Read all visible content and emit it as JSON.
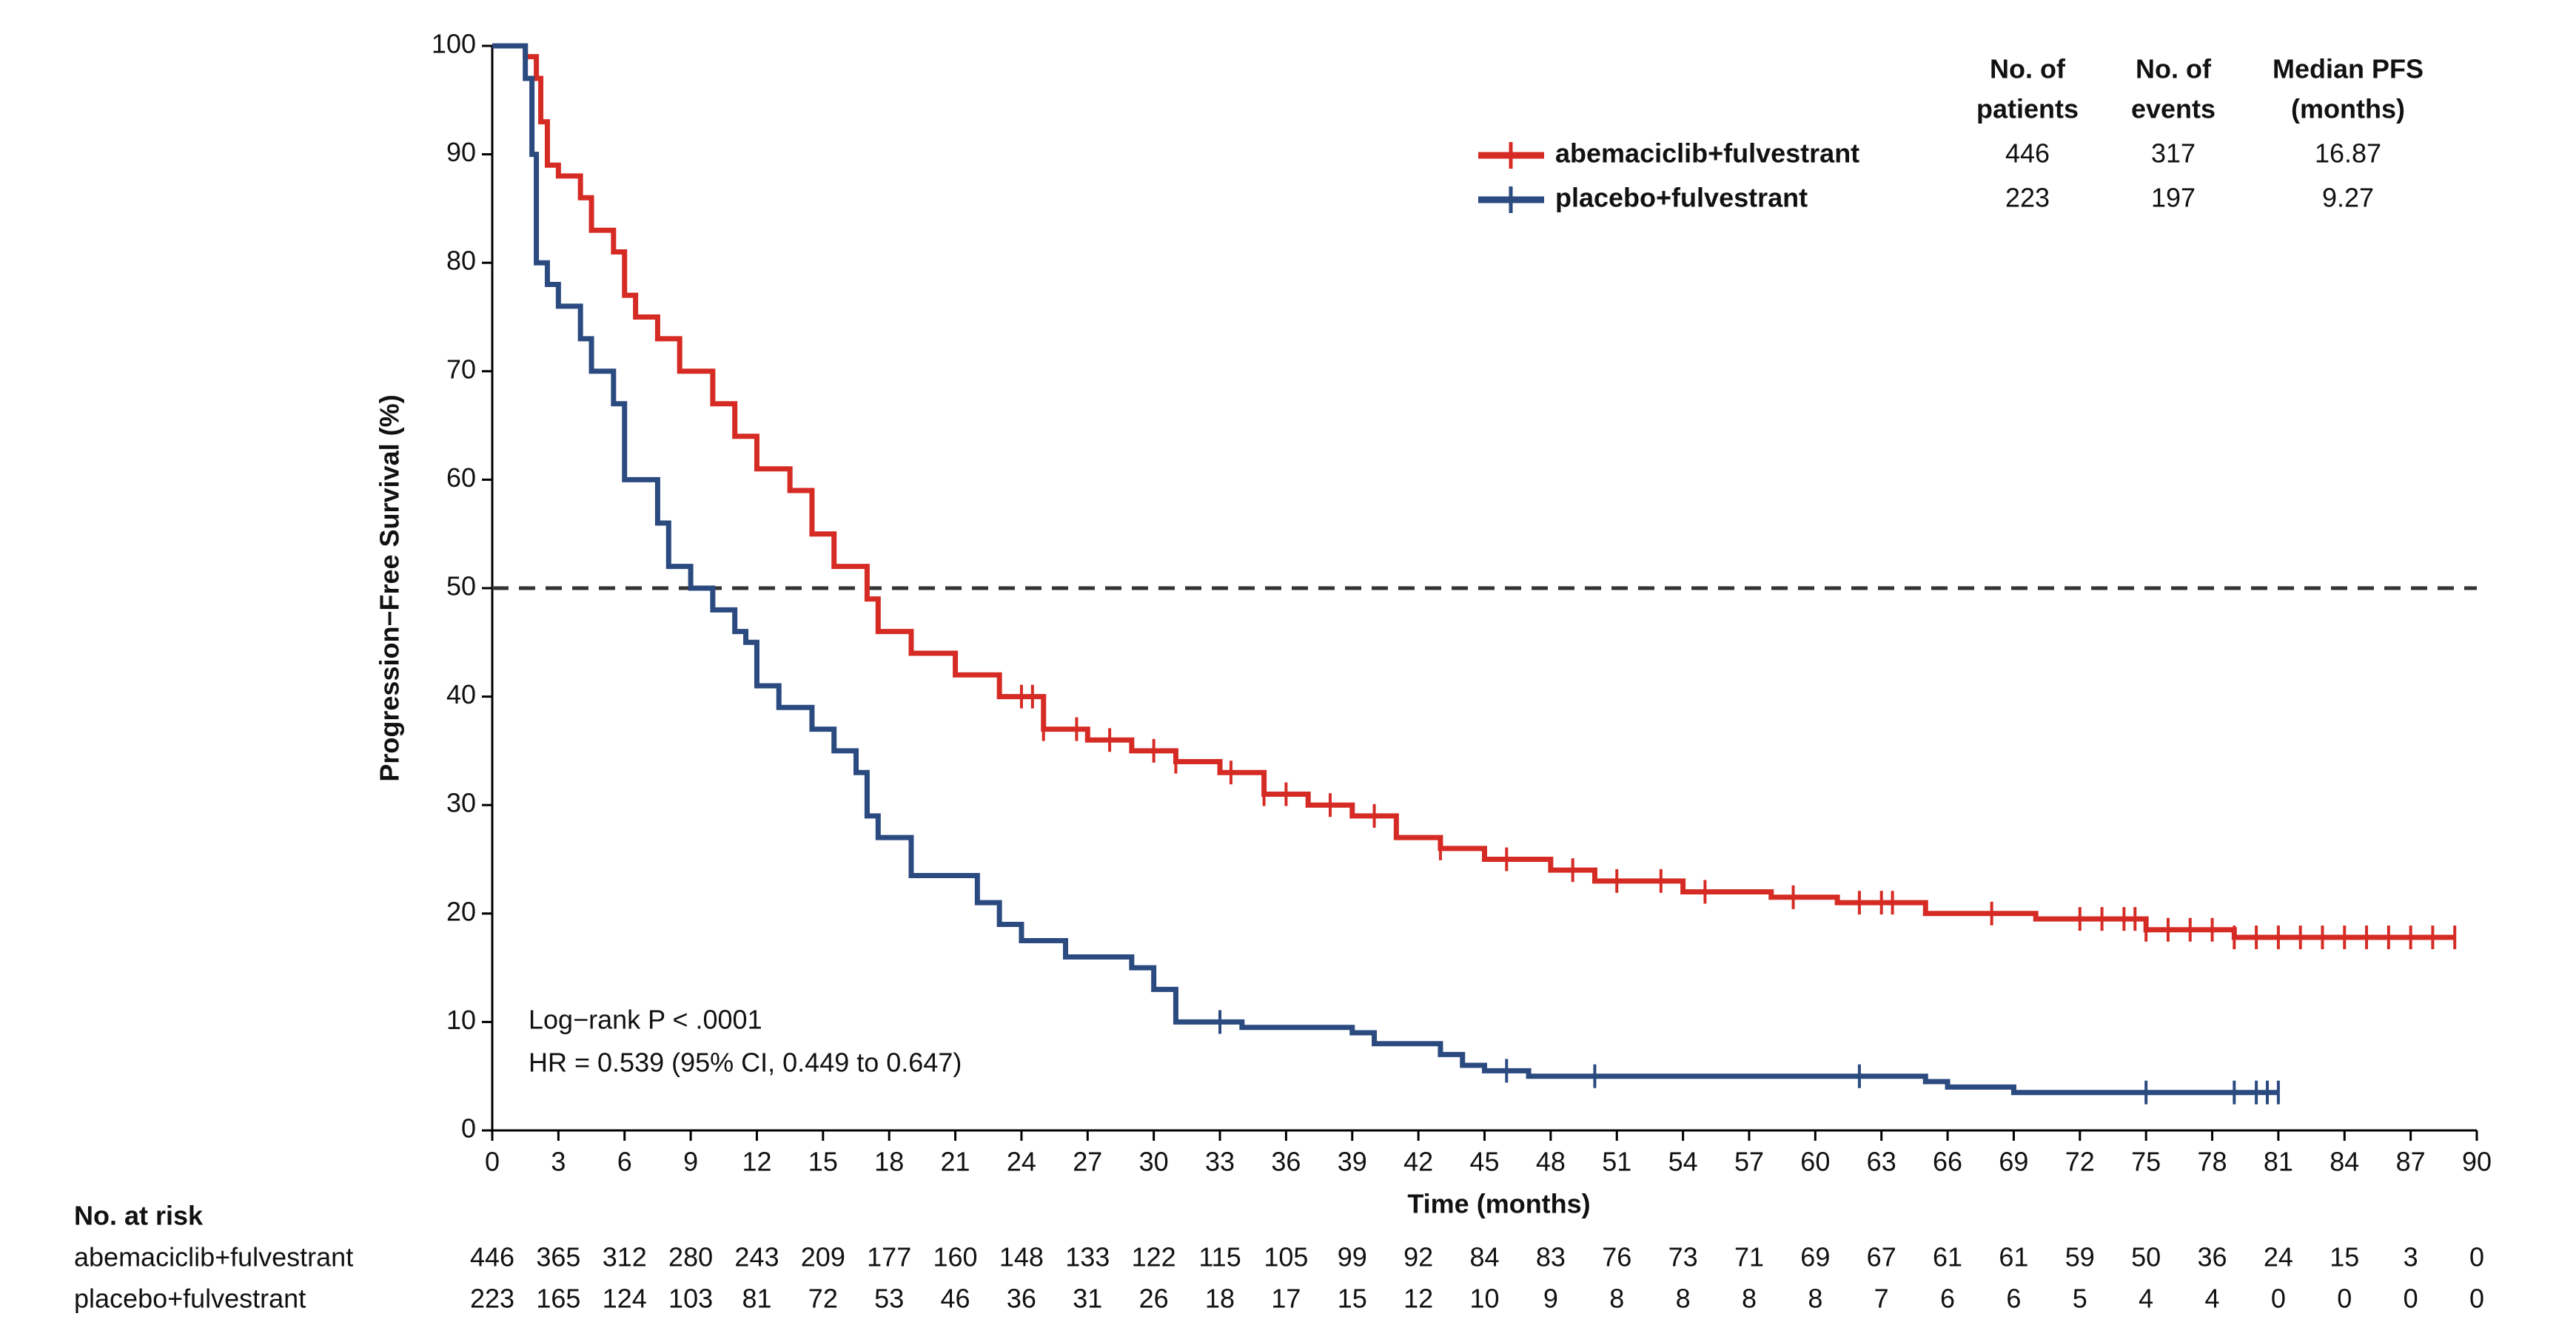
{
  "chart_data": {
    "type": "km",
    "ylabel": "Progression−Free Survival (%)",
    "xlabel": "Time (months)",
    "xlim": [
      0,
      90
    ],
    "ylim": [
      0,
      100
    ],
    "xticks": [
      0,
      3,
      6,
      9,
      12,
      15,
      18,
      21,
      24,
      27,
      30,
      33,
      36,
      39,
      42,
      45,
      48,
      51,
      54,
      57,
      60,
      63,
      66,
      69,
      72,
      75,
      78,
      81,
      84,
      87,
      90
    ],
    "yticks": [
      0,
      10,
      20,
      30,
      40,
      50,
      60,
      70,
      80,
      90,
      100
    ],
    "reference_line": 50,
    "annotations": [
      "Log−rank P < .0001",
      "HR =  0.539 (95% CI, 0.449 to 0.647)"
    ],
    "series": [
      {
        "name": "abemaciclib+fulvestrant",
        "color": "#d52b24",
        "x": [
          0,
          1,
          1.5,
          2,
          2.2,
          2.5,
          3,
          4,
          4.5,
          5.5,
          6,
          6.5,
          7.5,
          8.5,
          10,
          11,
          12,
          13.5,
          14.5,
          15.5,
          17,
          17.5,
          19,
          21,
          23,
          25,
          27,
          29,
          31,
          33,
          35,
          37,
          39,
          41,
          43,
          45,
          48,
          50,
          54,
          58,
          61,
          65,
          70,
          75,
          79,
          89
        ],
        "values": [
          100,
          100,
          99,
          97,
          93,
          89,
          88,
          86,
          83,
          81,
          77,
          75,
          73,
          70,
          67,
          64,
          61,
          59,
          55,
          52,
          49,
          46,
          44,
          42,
          40,
          37,
          36,
          35,
          34,
          33,
          31,
          30,
          29,
          27,
          26,
          25,
          24,
          23,
          22,
          21.5,
          21,
          20,
          19.5,
          18.5,
          17.8,
          17.8
        ],
        "censor_x": [
          24,
          24.5,
          25,
          26.5,
          28,
          30,
          31,
          33.5,
          35,
          36,
          38,
          40,
          43,
          46,
          49,
          51,
          53,
          55,
          59,
          62,
          63,
          63.5,
          68,
          72,
          73,
          74,
          74.5,
          75,
          76,
          77,
          78,
          79,
          80,
          81,
          82,
          83,
          84,
          85,
          86,
          87,
          88,
          89
        ]
      },
      {
        "name": "placebo+fulvestrant",
        "color": "#2a4a80",
        "x": [
          0,
          1,
          1.5,
          1.8,
          2,
          2.5,
          3,
          4,
          4.5,
          5.5,
          6,
          7.5,
          8,
          9,
          10,
          11,
          11.5,
          12,
          13,
          14.5,
          15.5,
          16.5,
          17,
          17.5,
          19,
          22,
          23,
          24,
          26,
          29,
          30,
          31,
          34,
          39,
          40,
          43,
          44,
          45,
          47,
          65,
          66,
          69,
          81
        ],
        "values": [
          100,
          100,
          97,
          90,
          80,
          78,
          76,
          73,
          70,
          67,
          60,
          56,
          52,
          50,
          48,
          46,
          45,
          41,
          39,
          37,
          35,
          33,
          29,
          27,
          23.5,
          21,
          19,
          17.5,
          16,
          15,
          13,
          10,
          9.5,
          9,
          8,
          7,
          6,
          5.5,
          5,
          4.5,
          4,
          3.5,
          3.5
        ],
        "censor_x": [
          33,
          46,
          50,
          62,
          75,
          79,
          80,
          80.5,
          81
        ]
      }
    ],
    "legend_table": {
      "headers": [
        [
          "No. of",
          "patients"
        ],
        [
          "No. of",
          "events"
        ],
        [
          "Median PFS",
          "(months)"
        ]
      ],
      "rows": [
        [
          446,
          317,
          16.87
        ],
        [
          223,
          197,
          9.27
        ]
      ]
    },
    "risk_table": {
      "title": "No. at risk",
      "rows": [
        {
          "name": "abemaciclib+fulvestrant",
          "values": [
            446,
            365,
            312,
            280,
            243,
            209,
            177,
            160,
            148,
            133,
            122,
            115,
            105,
            99,
            92,
            84,
            83,
            76,
            73,
            71,
            69,
            67,
            61,
            61,
            59,
            50,
            36,
            24,
            15,
            3,
            0
          ]
        },
        {
          "name": "placebo+fulvestrant",
          "values": [
            223,
            165,
            124,
            103,
            81,
            72,
            53,
            46,
            36,
            31,
            26,
            18,
            17,
            15,
            12,
            10,
            9,
            8,
            8,
            8,
            8,
            7,
            6,
            6,
            5,
            4,
            4,
            0,
            0,
            0,
            0
          ]
        }
      ]
    }
  }
}
